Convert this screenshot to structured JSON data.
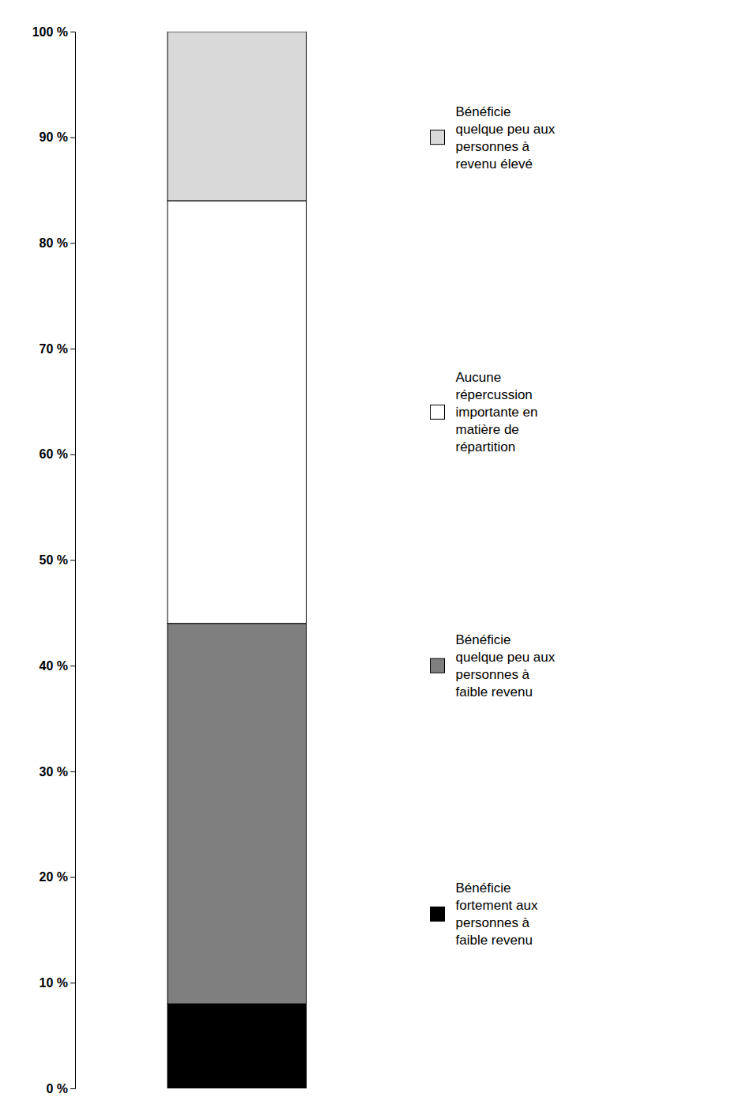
{
  "chart_data": {
    "type": "bar",
    "stacked": true,
    "categories": [
      null
    ],
    "series": [
      {
        "name": "Bénéficie\nfortement aux\npersonnes à\nfaible revenu",
        "color": "#000000",
        "values": [
          8
        ]
      },
      {
        "name": "Bénéficie\nquelque peu aux\npersonnes à\nfaible revenu",
        "color": "#7f7f7f",
        "values": [
          36
        ]
      },
      {
        "name": "Aucune\nrépercussion\nimportante en\nmatière de\nrépartition",
        "color": "#ffffff",
        "values": [
          40
        ]
      },
      {
        "name": "Bénéficie\nquelque peu aux\npersonnes à\nrevenu élevé",
        "color": "#d9d9d9",
        "values": [
          16
        ]
      }
    ],
    "ylim": [
      0,
      100
    ],
    "yticks": [
      {
        "value": 0,
        "label": "0 %"
      },
      {
        "value": 10,
        "label": "10 %"
      },
      {
        "value": 20,
        "label": "20 %"
      },
      {
        "value": 30,
        "label": "30 %"
      },
      {
        "value": 40,
        "label": "40 %"
      },
      {
        "value": 50,
        "label": "50 %"
      },
      {
        "value": 60,
        "label": "60 %"
      },
      {
        "value": 70,
        "label": "70 %"
      },
      {
        "value": 80,
        "label": "80 %"
      },
      {
        "value": 90,
        "label": "90 %"
      },
      {
        "value": 100,
        "label": "100 %"
      }
    ],
    "grid": false,
    "legend": "right",
    "tick_labels": "y"
  }
}
